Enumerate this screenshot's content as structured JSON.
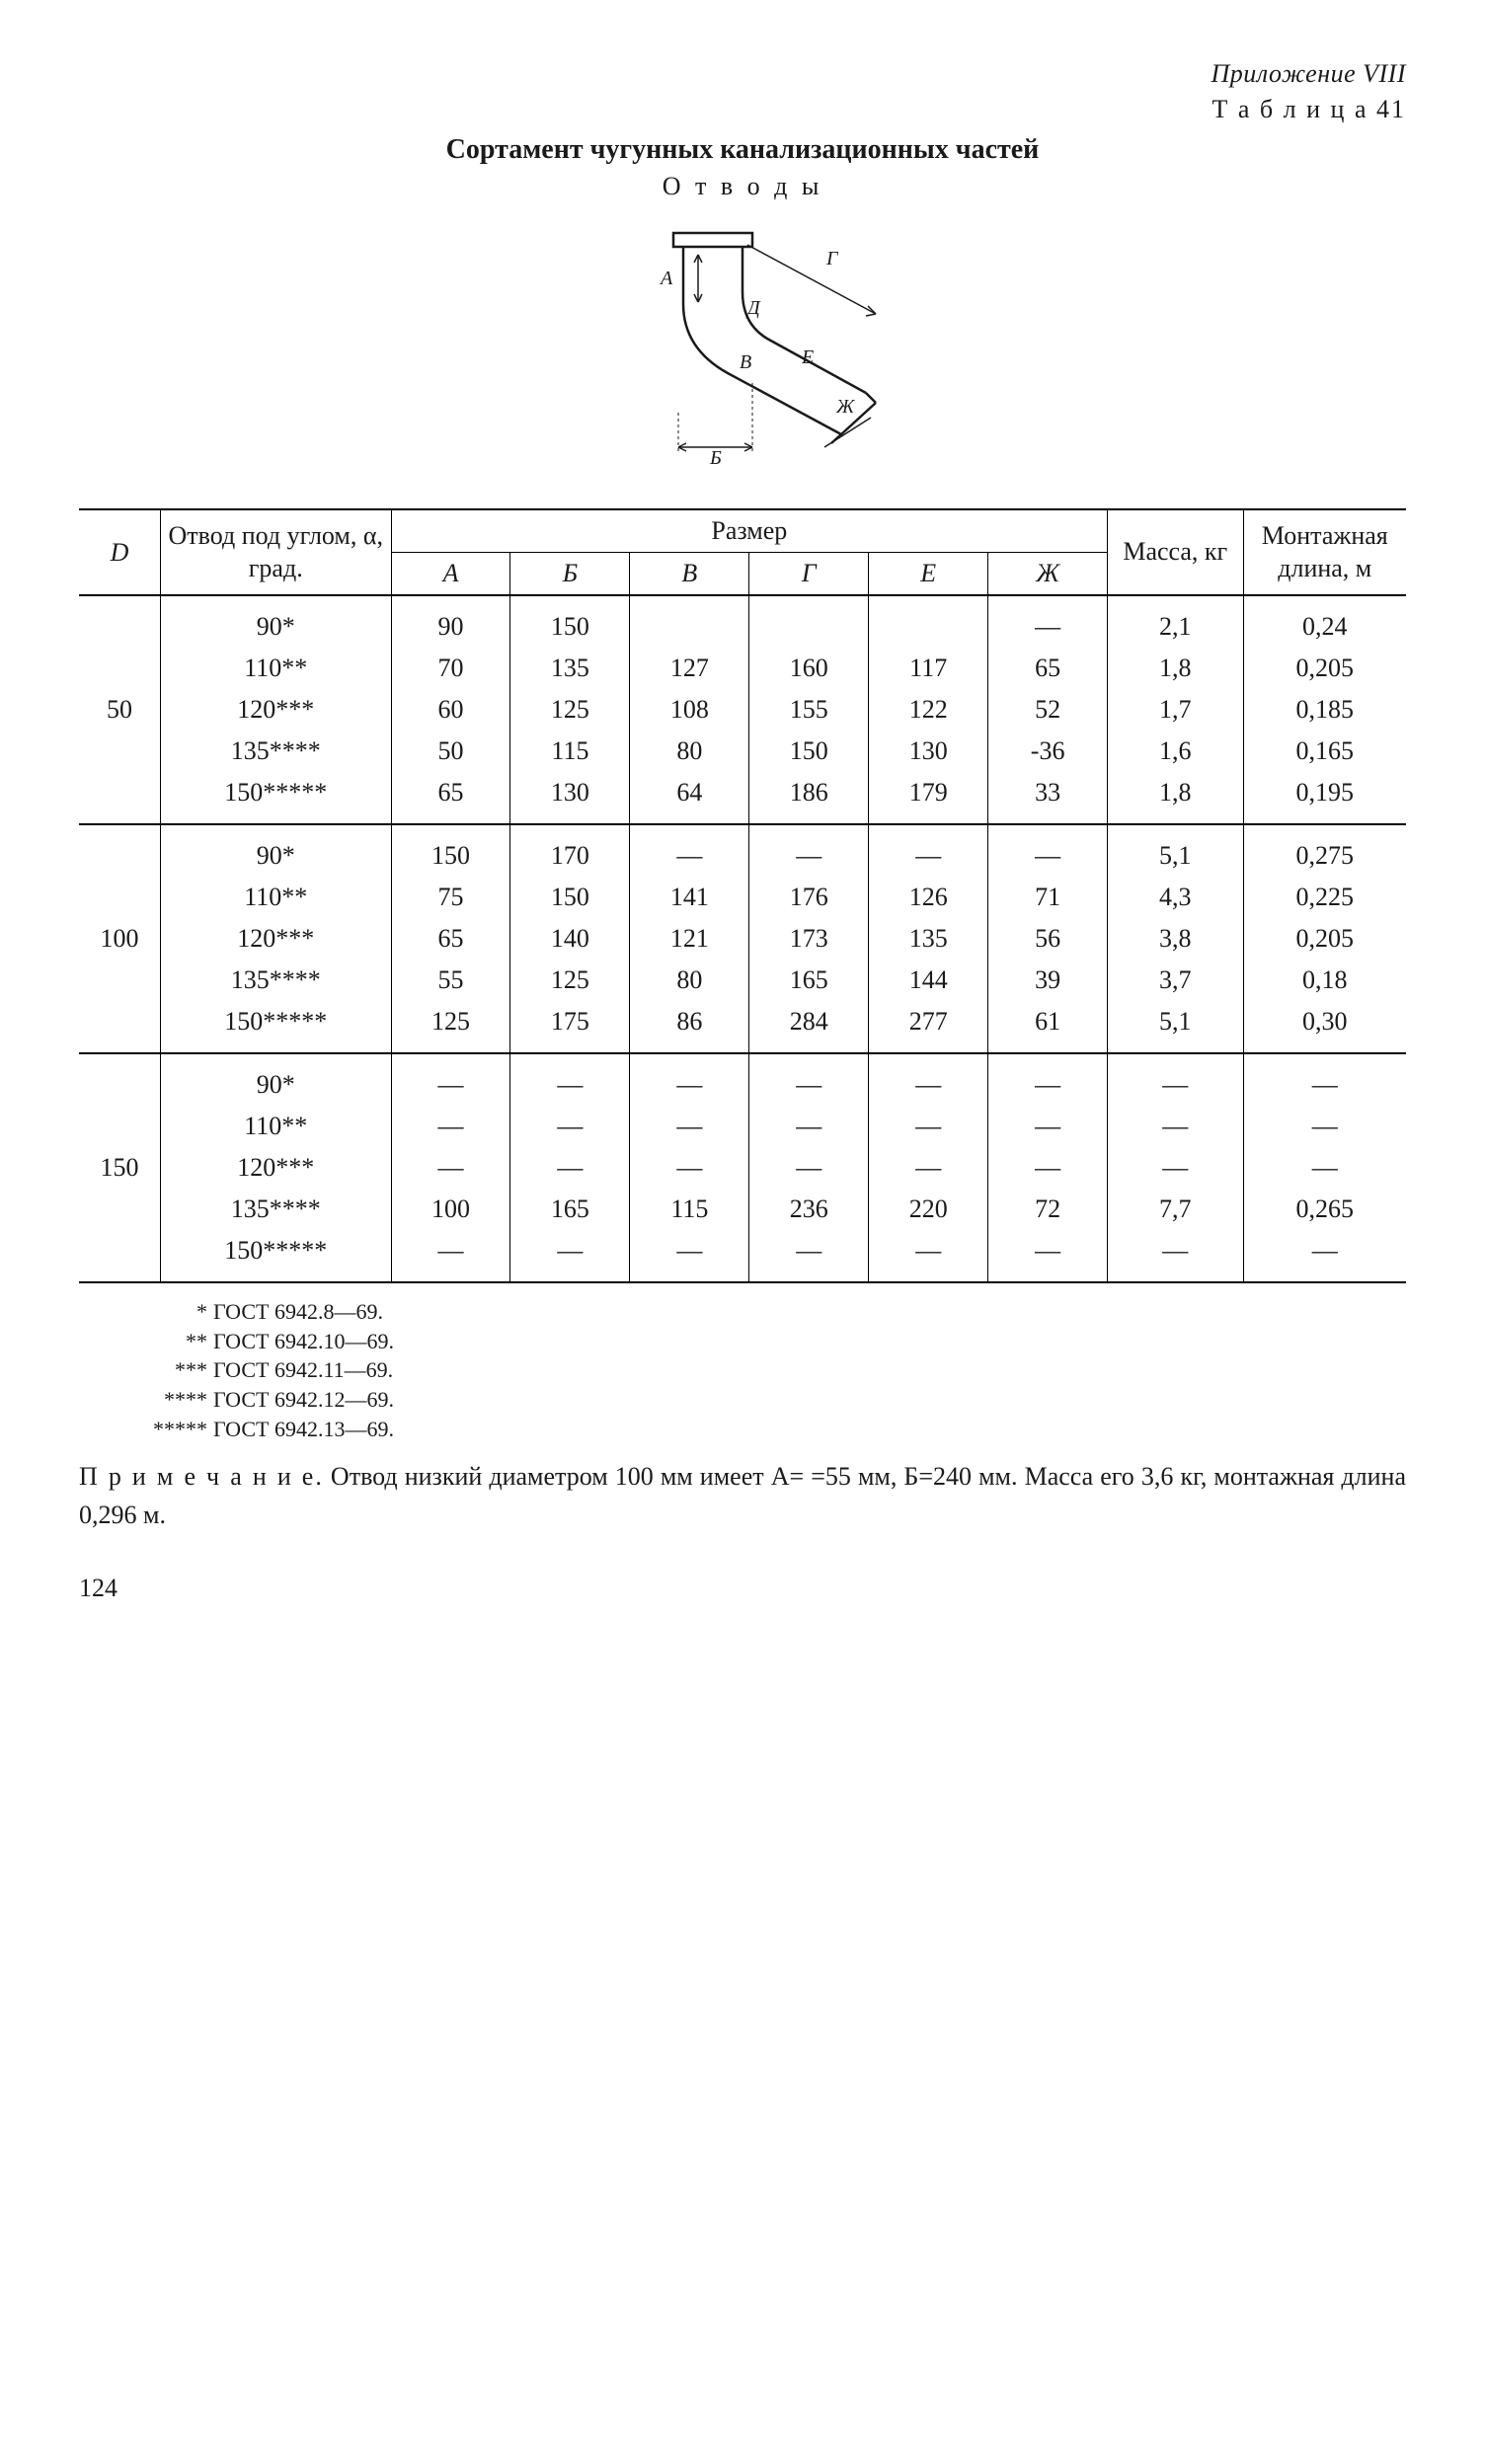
{
  "header": {
    "appendix": "Приложение VIII",
    "tableNo": "Т а б л и ц а  41",
    "title": "Сортамент чугунных канализационных частей",
    "subtitle": "О т в о д ы"
  },
  "diagram": {
    "labels": {
      "A": "А",
      "B": "Б",
      "V": "В",
      "G": "Г",
      "D": "Д",
      "E": "Е",
      "Zh": "Ж"
    },
    "stroke": "#1a1a1a",
    "strokeWidth": 2.5
  },
  "table": {
    "headers": {
      "D": "D",
      "angle": "Отвод под углом, α, град.",
      "sizeGroup": "Размер",
      "dims": [
        "А",
        "Б",
        "В",
        "Г",
        "Е",
        "Ж"
      ],
      "mass": "Масса, кг",
      "length": "Мон­тажная длина, м"
    },
    "dash": "—",
    "groups": [
      {
        "D": "50",
        "rows": [
          {
            "angle": "90*",
            "A": "90",
            "B": "150",
            "V": "",
            "G": "",
            "E": "",
            "Zh": "—",
            "mass": "2,1",
            "len": "0,24"
          },
          {
            "angle": "110**",
            "A": "70",
            "B": "135",
            "V": "127",
            "G": "160",
            "E": "117",
            "Zh": "65",
            "mass": "1,8",
            "len": "0,205"
          },
          {
            "angle": "120***",
            "A": "60",
            "B": "125",
            "V": "108",
            "G": "155",
            "E": "122",
            "Zh": "52",
            "mass": "1,7",
            "len": "0,185"
          },
          {
            "angle": "135****",
            "A": "50",
            "B": "115",
            "V": "80",
            "G": "150",
            "E": "130",
            "Zh": "-36",
            "mass": "1,6",
            "len": "0,165"
          },
          {
            "angle": "150*****",
            "A": "65",
            "B": "130",
            "V": "64",
            "G": "186",
            "E": "179",
            "Zh": "33",
            "mass": "1,8",
            "len": "0,195"
          }
        ]
      },
      {
        "D": "100",
        "rows": [
          {
            "angle": "90*",
            "A": "150",
            "B": "170",
            "V": "—",
            "G": "—",
            "E": "—",
            "Zh": "—",
            "mass": "5,1",
            "len": "0,275"
          },
          {
            "angle": "110**",
            "A": "75",
            "B": "150",
            "V": "141",
            "G": "176",
            "E": "126",
            "Zh": "71",
            "mass": "4,3",
            "len": "0,225"
          },
          {
            "angle": "120***",
            "A": "65",
            "B": "140",
            "V": "121",
            "G": "173",
            "E": "135",
            "Zh": "56",
            "mass": "3,8",
            "len": "0,205"
          },
          {
            "angle": "135****",
            "A": "55",
            "B": "125",
            "V": "80",
            "G": "165",
            "E": "144",
            "Zh": "39",
            "mass": "3,7",
            "len": "0,18"
          },
          {
            "angle": "150*****",
            "A": "125",
            "B": "175",
            "V": "86",
            "G": "284",
            "E": "277",
            "Zh": "61",
            "mass": "5,1",
            "len": "0,30"
          }
        ]
      },
      {
        "D": "150",
        "rows": [
          {
            "angle": "90*",
            "A": "—",
            "B": "—",
            "V": "—",
            "G": "—",
            "E": "—",
            "Zh": "—",
            "mass": "—",
            "len": "—"
          },
          {
            "angle": "110**",
            "A": "—",
            "B": "—",
            "V": "—",
            "G": "—",
            "E": "—",
            "Zh": "—",
            "mass": "—",
            "len": "—"
          },
          {
            "angle": "120***",
            "A": "—",
            "B": "—",
            "V": "—",
            "G": "—",
            "E": "—",
            "Zh": "—",
            "mass": "—",
            "len": "—"
          },
          {
            "angle": "135****",
            "A": "100",
            "B": "165",
            "V": "115",
            "G": "236",
            "E": "220",
            "Zh": "72",
            "mass": "7,7",
            "len": "0,265"
          },
          {
            "angle": "150*****",
            "A": "—",
            "B": "—",
            "V": "—",
            "G": "—",
            "E": "—",
            "Zh": "—",
            "mass": "—",
            "len": "—"
          }
        ]
      }
    ]
  },
  "footnotes": [
    {
      "stars": "*",
      "text": "ГОСТ 6942.8—69."
    },
    {
      "stars": "**",
      "text": "ГОСТ 6942.10—69."
    },
    {
      "stars": "***",
      "text": "ГОСТ 6942.11—69."
    },
    {
      "stars": "****",
      "text": "ГОСТ 6942.12—69."
    },
    {
      "stars": "*****",
      "text": "ГОСТ 6942.13—69."
    }
  ],
  "note": {
    "lead": "П р и м е ч а н и е.",
    "text": " Отвод низкий диаметром 100 мм имеет А= =55 мм, Б=240 мм. Масса его 3,6 кг, монтажная длина 0,296 м."
  },
  "pageNumber": "124"
}
